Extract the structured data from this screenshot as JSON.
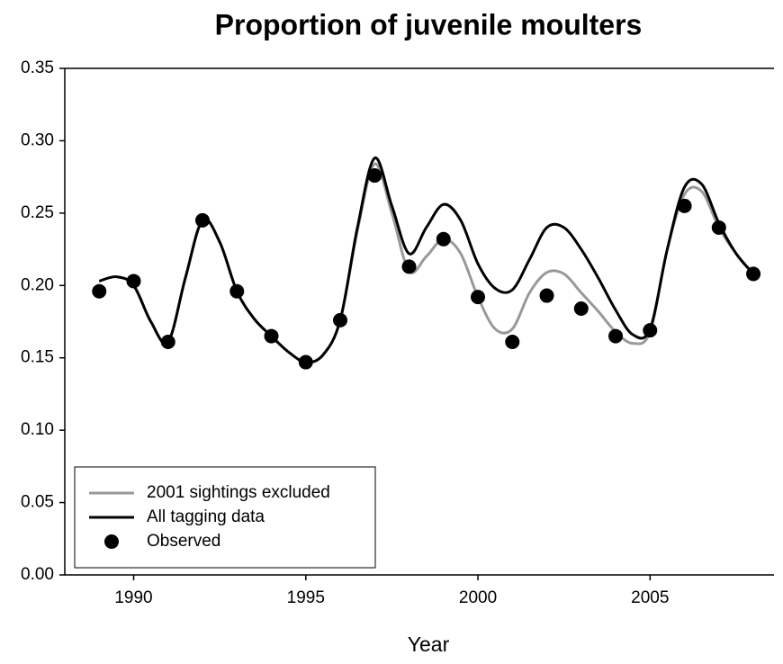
{
  "chart_data": {
    "type": "line",
    "title": "Proportion of juvenile moulters",
    "x_label": "Year",
    "xlim": [
      1988,
      2008.6
    ],
    "ylim": [
      0,
      0.35
    ],
    "xticks": [
      1990,
      1995,
      2000,
      2005
    ],
    "yticks": [
      {
        "value": 0,
        "label": "0.00"
      },
      {
        "value": 0.05,
        "label": "0.05"
      },
      {
        "value": 0.1,
        "label": "0.10"
      },
      {
        "value": 0.15,
        "label": "0.15"
      },
      {
        "value": 0.2,
        "label": "0.20"
      },
      {
        "value": 0.25,
        "label": "0.25"
      },
      {
        "value": 0.3,
        "label": "0.30"
      },
      {
        "value": 0.35,
        "label": "0.35"
      }
    ],
    "legend": "bottom-left",
    "series": [
      {
        "name": "2001 sightings excluded",
        "type": "line",
        "color": "#999999",
        "x": [
          1989,
          1989.5,
          1990,
          1990.5,
          1991,
          1991.5,
          1992,
          1992.5,
          1993,
          1993.5,
          1994,
          1994.5,
          1995,
          1995.5,
          1996,
          1996.5,
          1997,
          1997.5,
          1998,
          1998.5,
          1999,
          1999.5,
          2000,
          2000.5,
          2001,
          2001.5,
          2002,
          2002.5,
          2003,
          2003.5,
          2004,
          2004.5,
          2005,
          2005.5,
          2006,
          2006.5,
          2007,
          2007.5,
          2008
        ],
        "values": [
          0.203,
          0.206,
          0.2,
          0.175,
          0.161,
          0.205,
          0.245,
          0.23,
          0.196,
          0.177,
          0.165,
          0.154,
          0.147,
          0.152,
          0.176,
          0.238,
          0.284,
          0.25,
          0.21,
          0.22,
          0.232,
          0.222,
          0.192,
          0.17,
          0.17,
          0.195,
          0.209,
          0.208,
          0.195,
          0.182,
          0.168,
          0.16,
          0.168,
          0.225,
          0.263,
          0.265,
          0.24,
          0.222,
          0.208
        ]
      },
      {
        "name": "All tagging data",
        "type": "line",
        "color": "#000000",
        "x": [
          1989,
          1989.5,
          1990,
          1990.5,
          1991,
          1991.5,
          1992,
          1992.5,
          1993,
          1993.5,
          1994,
          1994.5,
          1995,
          1995.5,
          1996,
          1996.5,
          1997,
          1997.5,
          1998,
          1998.5,
          1999,
          1999.5,
          2000,
          2000.5,
          2001,
          2001.5,
          2002,
          2002.5,
          2003,
          2003.5,
          2004,
          2004.5,
          2005,
          2005.5,
          2006,
          2006.5,
          2007,
          2007.5,
          2008
        ],
        "values": [
          0.203,
          0.206,
          0.2,
          0.175,
          0.161,
          0.205,
          0.245,
          0.23,
          0.196,
          0.177,
          0.165,
          0.154,
          0.147,
          0.152,
          0.176,
          0.24,
          0.288,
          0.255,
          0.222,
          0.24,
          0.256,
          0.245,
          0.215,
          0.198,
          0.197,
          0.218,
          0.24,
          0.24,
          0.225,
          0.205,
          0.183,
          0.166,
          0.17,
          0.225,
          0.268,
          0.27,
          0.243,
          0.222,
          0.208
        ]
      },
      {
        "name": "Observed",
        "type": "scatter",
        "color": "#000000",
        "x": [
          1989,
          1990,
          1991,
          1992,
          1993,
          1994,
          1995,
          1996,
          1997,
          1998,
          1999,
          2000,
          2001,
          2002,
          2003,
          2004,
          2005,
          2006,
          2007,
          2008
        ],
        "values": [
          0.196,
          0.203,
          0.161,
          0.245,
          0.196,
          0.165,
          0.147,
          0.176,
          0.276,
          0.213,
          0.232,
          0.192,
          0.161,
          0.193,
          0.184,
          0.165,
          0.169,
          0.255,
          0.24,
          0.208
        ]
      }
    ]
  }
}
